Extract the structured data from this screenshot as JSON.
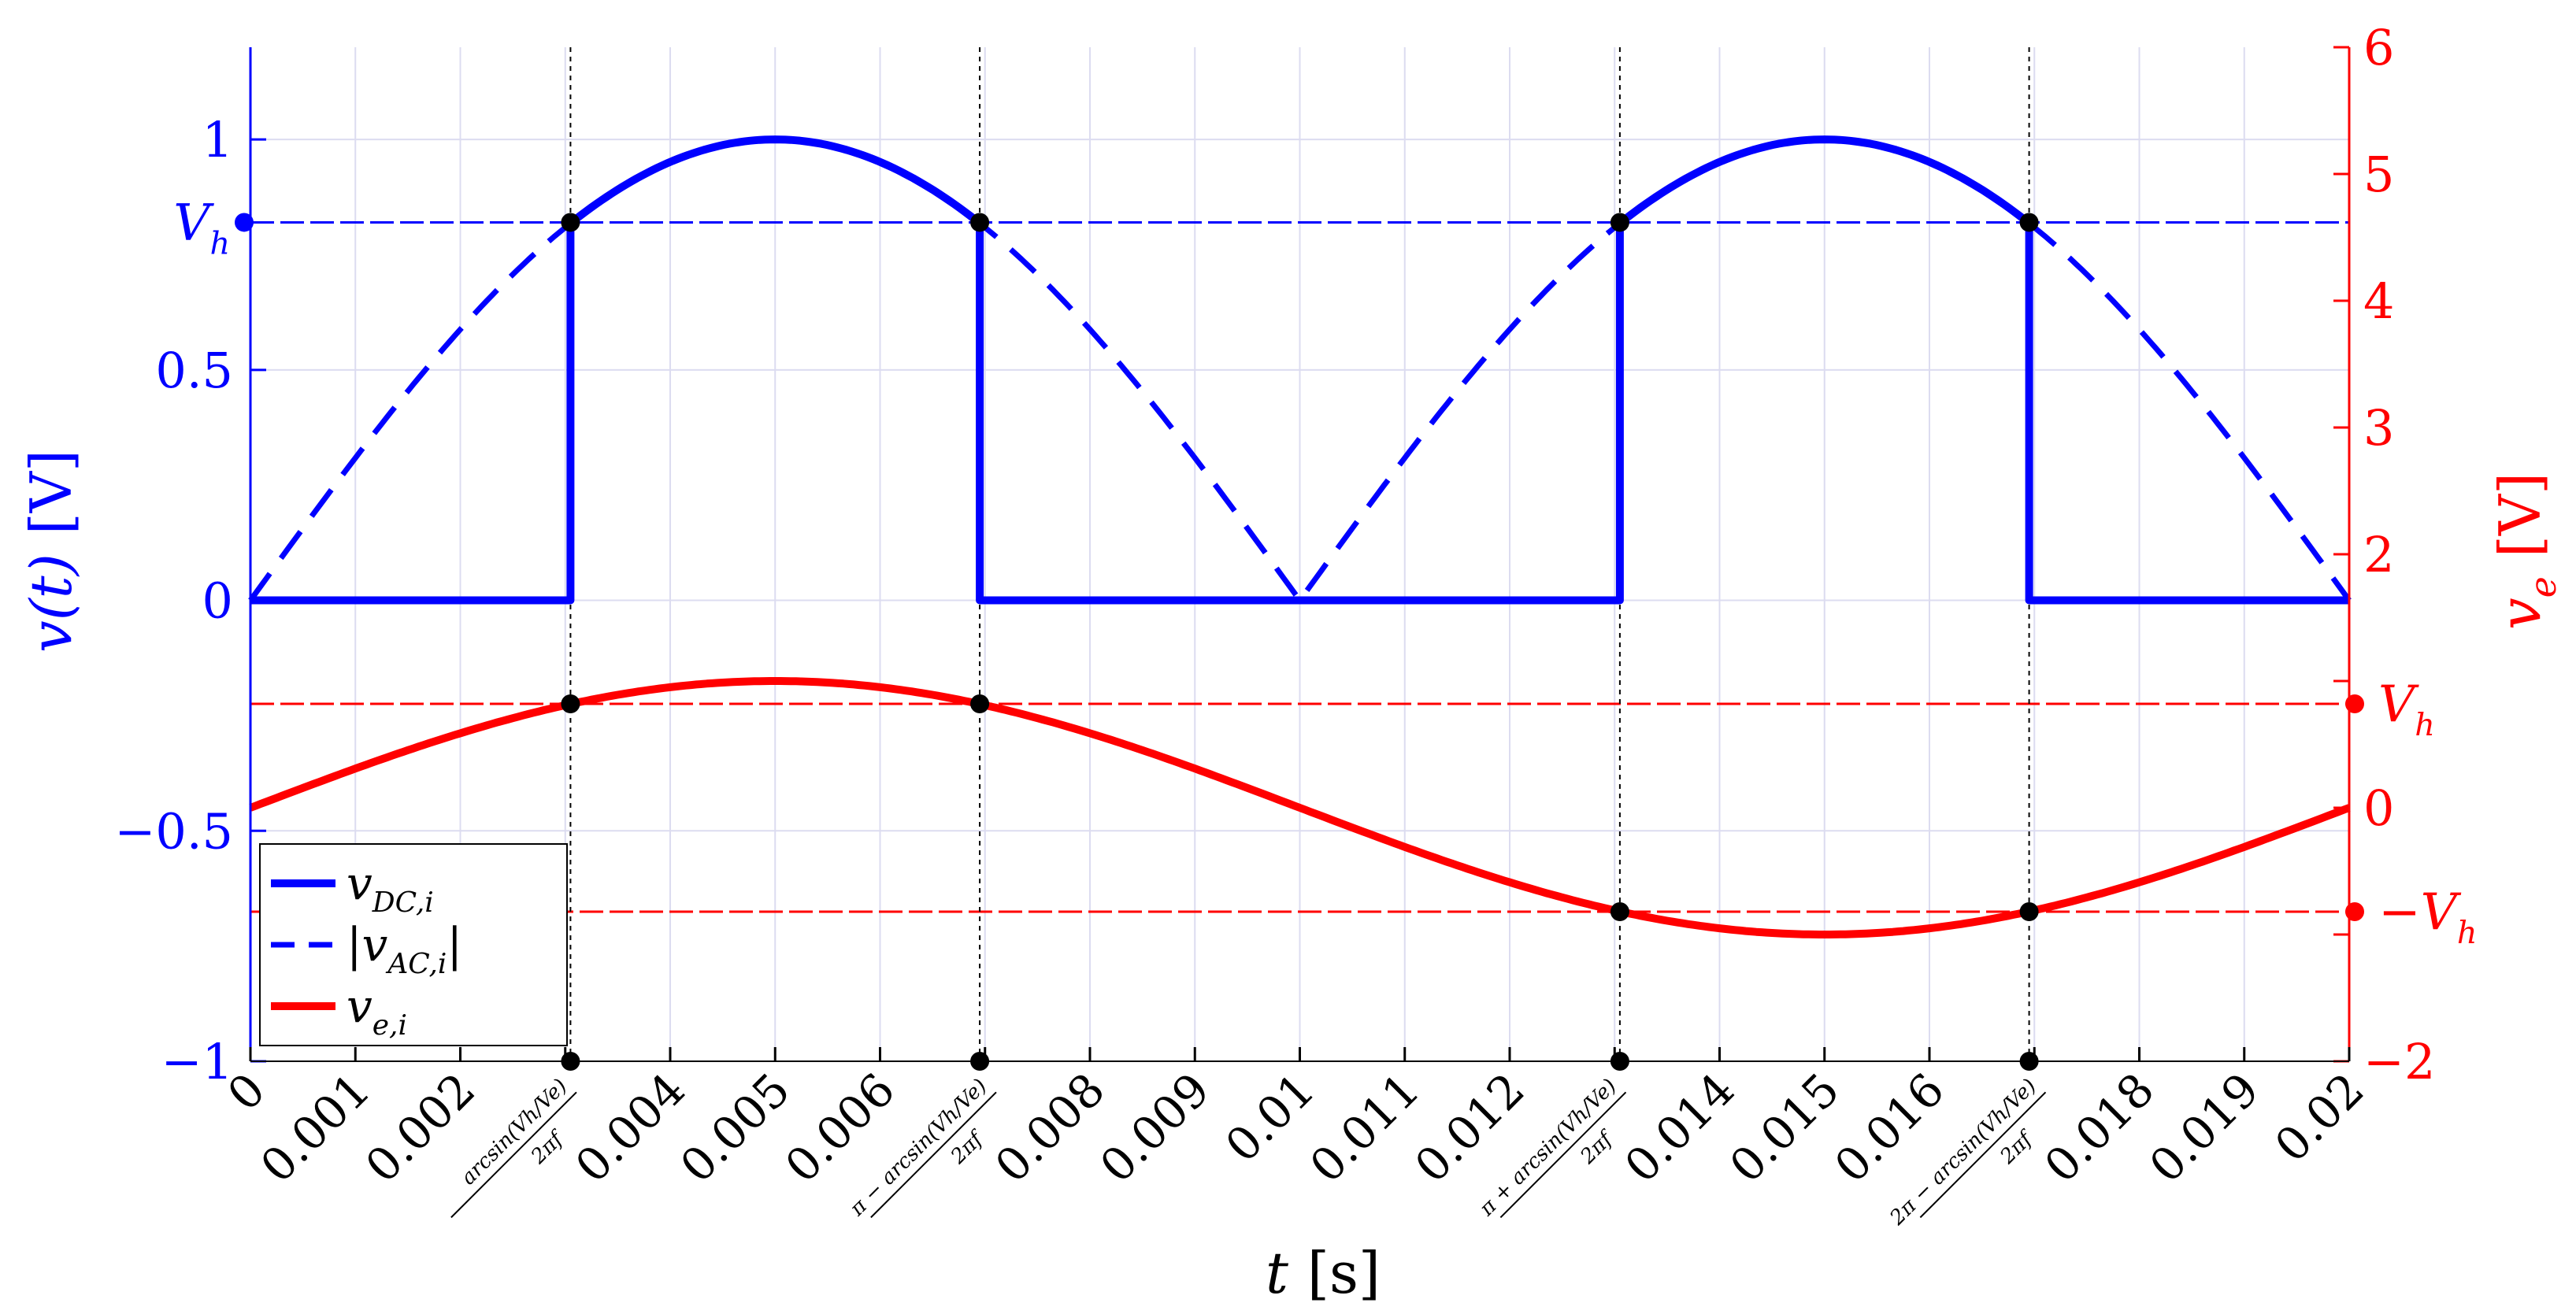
{
  "chart_data": {
    "type": "line",
    "title": "",
    "xlabel": {
      "var": "t",
      "unit": "[s]"
    },
    "ylabel_left": {
      "var": "v(t)",
      "unit": "[V]"
    },
    "ylabel_right": {
      "var": "v",
      "sub": "e",
      "unit": "[V]"
    },
    "xlim": [
      0,
      0.02
    ],
    "ylim_left": [
      -1,
      1.2
    ],
    "ylim_right": [
      -2,
      6
    ],
    "grid": true,
    "legend_position": "lower-left",
    "x_ticks": [
      {
        "value": 0,
        "label": "0"
      },
      {
        "value": 0.001,
        "label": "0.001"
      },
      {
        "value": 0.002,
        "label": "0.002"
      },
      {
        "value": 0.003,
        "label": "",
        "formula": {
          "num": "arcsin(Vh/Ve)",
          "den": "2πf"
        }
      },
      {
        "value": 0.004,
        "label": "0.004"
      },
      {
        "value": 0.005,
        "label": "0.005"
      },
      {
        "value": 0.006,
        "label": "0.006"
      },
      {
        "value": 0.007,
        "label": "",
        "formula": {
          "num": "π − arcsin(Vh/Ve)",
          "den": "2πf"
        }
      },
      {
        "value": 0.008,
        "label": "0.008"
      },
      {
        "value": 0.009,
        "label": "0.009"
      },
      {
        "value": 0.01,
        "label": "0.01"
      },
      {
        "value": 0.011,
        "label": "0.011"
      },
      {
        "value": 0.012,
        "label": "0.012"
      },
      {
        "value": 0.013,
        "label": "",
        "formula": {
          "num": "π + arcsin(Vh/Ve)",
          "den": "2πf"
        }
      },
      {
        "value": 0.014,
        "label": "0.014"
      },
      {
        "value": 0.015,
        "label": "0.015"
      },
      {
        "value": 0.016,
        "label": "0.016"
      },
      {
        "value": 0.017,
        "label": "",
        "formula": {
          "num": "2π − arcsin(Vh/Ve)",
          "den": "2πf"
        }
      },
      {
        "value": 0.018,
        "label": "0.018"
      },
      {
        "value": 0.019,
        "label": "0.019"
      },
      {
        "value": 0.02,
        "label": "0.02"
      }
    ],
    "y_ticks_left": [
      {
        "value": -1,
        "label": "−1"
      },
      {
        "value": -0.5,
        "label": "−0.5"
      },
      {
        "value": 0,
        "label": "0"
      },
      {
        "value": 0.5,
        "label": "0.5"
      },
      {
        "value": 1,
        "label": "1"
      }
    ],
    "y_ticks_right": [
      {
        "value": -2,
        "label": "−2"
      },
      {
        "value": 0,
        "label": "0"
      },
      {
        "value": 2,
        "label": "2"
      },
      {
        "value": 3,
        "label": "3"
      },
      {
        "value": 4,
        "label": "4"
      },
      {
        "value": 5,
        "label": "5"
      },
      {
        "value": 6,
        "label": "6"
      }
    ],
    "right_axis_minor_ticks": [
      -1,
      1
    ],
    "vh_left": {
      "value": 0.82,
      "label": "V",
      "sub": "h"
    },
    "vh_right": [
      {
        "value": 0.82,
        "label": "V",
        "sub": "h",
        "prefix": ""
      },
      {
        "value": -0.82,
        "label": "V",
        "sub": "h",
        "prefix": "−"
      }
    ],
    "frequency_hz": 50,
    "ve_amplitude": 1.0,
    "crossing_times": [
      0.00305,
      0.00695,
      0.01305,
      0.01695
    ],
    "series": [
      {
        "name": "v",
        "sub": "DC,i",
        "axis": "left",
        "style": "solid",
        "color": "#0000ff",
        "x": [
          0,
          0.00305,
          0.00305,
          0.003571,
          0.004,
          0.0045,
          0.005,
          0.0055,
          0.006,
          0.006429,
          0.00695,
          0.00695,
          0.01305,
          0.01305,
          0.013571,
          0.014,
          0.0145,
          0.015,
          0.0155,
          0.016,
          0.016429,
          0.01695,
          0.01695,
          0.02
        ],
        "y": [
          0,
          0,
          0.82,
          0.901,
          0.951,
          0.988,
          1,
          0.988,
          0.951,
          0.901,
          0.82,
          0,
          0,
          0.82,
          0.901,
          0.951,
          0.988,
          1,
          0.988,
          0.951,
          0.901,
          0.82,
          0,
          0
        ]
      },
      {
        "name": "|v",
        "sub": "AC,i",
        "suffix": "|",
        "axis": "left",
        "style": "dashed",
        "color": "#0000ff",
        "x": [
          0,
          0.001,
          0.002,
          0.00305,
          0.004,
          0.005,
          0.006,
          0.00695,
          0.008,
          0.009,
          0.01,
          0.011,
          0.012,
          0.01305,
          0.014,
          0.015,
          0.016,
          0.01695,
          0.018,
          0.019,
          0.02
        ],
        "y": [
          0,
          0.309,
          0.588,
          0.82,
          0.951,
          1,
          0.951,
          0.82,
          0.588,
          0.309,
          0,
          0.309,
          0.588,
          0.82,
          0.951,
          1,
          0.951,
          0.82,
          0.588,
          0.309,
          0
        ]
      },
      {
        "name": "v",
        "sub": "e,i",
        "axis": "right",
        "style": "solid",
        "color": "#ff0000",
        "x": [
          0,
          0.001,
          0.002,
          0.00305,
          0.004,
          0.005,
          0.006,
          0.00695,
          0.008,
          0.009,
          0.01,
          0.011,
          0.012,
          0.01305,
          0.014,
          0.015,
          0.016,
          0.01695,
          0.018,
          0.019,
          0.02
        ],
        "y": [
          0,
          0.309,
          0.588,
          0.82,
          0.951,
          1,
          0.951,
          0.82,
          0.588,
          0.309,
          0,
          -0.309,
          -0.588,
          -0.82,
          -0.951,
          -1,
          -0.951,
          -0.82,
          -0.588,
          -0.309,
          0
        ]
      }
    ],
    "colors": {
      "blue": "#0000ff",
      "red": "#ff0000",
      "grid": "#dcdcf0",
      "black": "#000000"
    }
  }
}
